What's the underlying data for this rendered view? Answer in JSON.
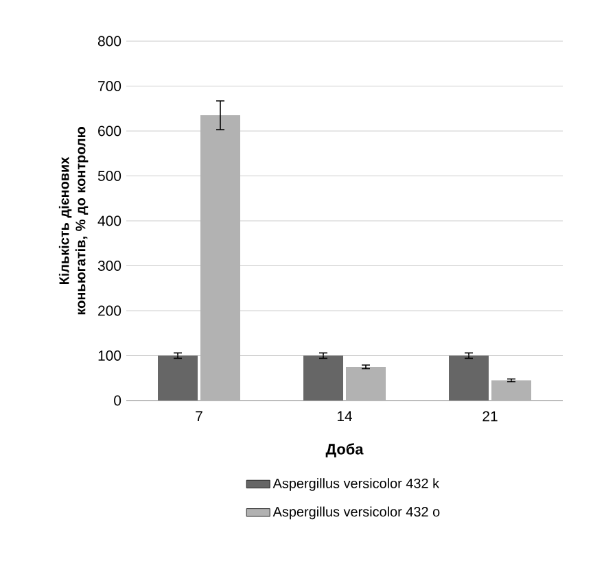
{
  "chart_data": {
    "type": "bar",
    "xlabel": "Доба",
    "ylabel": "Кількість дієнових коньюгатів, % до контролю",
    "categories": [
      "7",
      "14",
      "21"
    ],
    "series": [
      {
        "name": "Aspergillus versicolor 432 k",
        "color": "#666666",
        "values": [
          100,
          100,
          100
        ],
        "errors": [
          6,
          6,
          6
        ]
      },
      {
        "name": "Aspergillus versicolor 432 o",
        "color": "#b2b2b2",
        "values": [
          635,
          75,
          45
        ],
        "errors": [
          32,
          4,
          3
        ]
      }
    ],
    "ylim": [
      0,
      800
    ],
    "yticks": [
      0,
      100,
      200,
      300,
      400,
      500,
      600,
      700,
      800
    ],
    "grid": "y",
    "legend": "bottom"
  }
}
